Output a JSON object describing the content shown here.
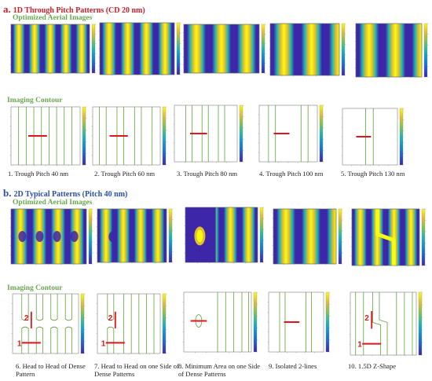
{
  "section_a": {
    "letter": "a.",
    "title": "1D Through Pitch Patterns (CD 20 nm)",
    "aerial_label": "Optimized Aerial Images",
    "contour_label": "Imaging Contour",
    "captions": [
      "1. Trough Pitch 40 nm",
      "2. Trough Pitch 60 nm",
      "3. Trough Pitch 80 nm",
      "4. Trough Pitch 100 nm",
      "5. Trough Pitch 130 nm"
    ]
  },
  "section_b": {
    "letter": "b.",
    "title": "2D  Typical Patterns (Pitch 40 nm)",
    "aerial_label": "Optimized Aerial Images",
    "contour_label": "Imaging Contour",
    "captions": [
      "6. Head to Head of Dense Pattern",
      "7. Head to Head  on one Side of Dense Patterns",
      "8. Minimum Area on one Side of Dense Patterns",
      "9. Isolated 2-lines",
      "10. 1.5D Z-Shape"
    ],
    "markers": [
      "1",
      "2"
    ]
  },
  "colors": {
    "title": "#c8202a",
    "sublabel": "#6aa84f",
    "contour_line": "#5fa33a",
    "marker": "#e0141c",
    "colormap": [
      "#3e26a8",
      "#1f5be0",
      "#0d8fd8",
      "#1fb8b3",
      "#7cc455",
      "#e3bd2e",
      "#f9fb0e"
    ]
  }
}
